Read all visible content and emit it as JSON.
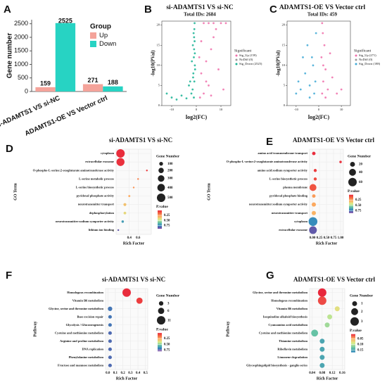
{
  "chart_data": [
    {
      "type": "bar",
      "panel_label": "A",
      "ylabel": "Gene number",
      "legend_title": "Group",
      "categories": [
        "si-ADAMTS1 VS si-NC",
        "ADAMTS1-OE VS Vector ctrl"
      ],
      "series": [
        {
          "name": "Up",
          "color": "#f4a39a",
          "values": [
            159,
            271
          ]
        },
        {
          "name": "Down",
          "color": "#27d3c3",
          "values": [
            2525,
            188
          ]
        }
      ],
      "ylim": [
        0,
        2650
      ],
      "yticks": [
        0,
        500,
        1000,
        1500,
        2000,
        2500
      ]
    },
    {
      "type": "scatter",
      "panel_label": "B",
      "title": "si-ADAMTS1 VS si-NC",
      "subtitle": "Total IDs: 2684",
      "xlabel": "log2(FC)",
      "ylabel": "-log10(PVal)",
      "legend_title": "Significant",
      "xlim": [
        -14,
        14
      ],
      "ylim": [
        0,
        21
      ],
      "xticks": [
        -10,
        0,
        10
      ],
      "yticks": [
        0,
        5,
        10,
        15,
        20
      ],
      "series": [
        {
          "name": "Sig_Up (159)",
          "color": "#f06eaa",
          "x": [
            1.5,
            3,
            5,
            2,
            4,
            6,
            8,
            10,
            12,
            3,
            5,
            7,
            2,
            9,
            11,
            1.2,
            4,
            6,
            7
          ],
          "y": [
            2,
            3,
            5,
            8,
            11,
            14,
            19,
            20.5,
            20.5,
            20.5,
            20.5,
            20.5,
            16,
            9,
            4,
            12,
            6,
            2.5,
            17
          ]
        },
        {
          "name": "NoDiff (0)",
          "color": "#999999",
          "x": [],
          "y": []
        },
        {
          "name": "Sig_Down (2525)",
          "color": "#19b394",
          "x": [
            -1,
            -1.5,
            -0.8,
            -1.2,
            -0.6,
            -1,
            -0.9,
            -0.7,
            -1.1,
            -0.8,
            -2,
            -3,
            -1.3,
            -0.5,
            -1.8,
            -0.6,
            -1.4,
            -0.9,
            -10,
            -12,
            -8,
            -6,
            -4,
            -2.5,
            -0.7
          ],
          "y": [
            2,
            4,
            6,
            8,
            10,
            12,
            14,
            16,
            18,
            19,
            3,
            5,
            7,
            9,
            11,
            13,
            15,
            17,
            2,
            3,
            1.5,
            2.5,
            1.8,
            6,
            20.5
          ]
        }
      ]
    },
    {
      "type": "scatter",
      "panel_label": "C",
      "title": "ADAMTS1-OE VS Vector ctrl",
      "subtitle": "Total IDs: 459",
      "xlabel": "log2(FC)",
      "ylabel": "-log10(PVal)",
      "legend_title": "Significant",
      "xlim": [
        -14,
        14
      ],
      "ylim": [
        0,
        21
      ],
      "xticks": [
        -10,
        0,
        10
      ],
      "yticks": [
        0,
        5,
        10,
        15,
        20
      ],
      "series": [
        {
          "name": "Sig_Up (271)",
          "color": "#f06eaa",
          "x": [
            1.5,
            2,
            3,
            1.2,
            2.5,
            1.8,
            1.5,
            4,
            6,
            8,
            10,
            3,
            2,
            5
          ],
          "y": [
            3,
            6,
            9,
            12,
            15,
            18,
            20.5,
            4,
            7,
            3,
            4,
            2,
            10,
            13
          ]
        },
        {
          "name": "NoDiff (0)",
          "color": "#999999",
          "x": [],
          "y": []
        },
        {
          "name": "Sig_Down (188)",
          "color": "#3fa9d6",
          "x": [
            -2,
            -4,
            -6,
            -3,
            -5,
            -8,
            -10,
            -1.5,
            -2.5,
            -7,
            -1.2,
            -4,
            -9
          ],
          "y": [
            3,
            5,
            8,
            12,
            15,
            4,
            3,
            6,
            10,
            12,
            18,
            2,
            6
          ]
        }
      ]
    },
    {
      "type": "bubble",
      "panel_label": "D",
      "title": "si-ADAMTS1 VS si-NC",
      "xlabel": "Rich Factor",
      "ylabel": "GO Term",
      "categories": [
        "cytoplasm",
        "extracellular exosome",
        "O-phospho-L-serine:2-oxoglutarate aminotransferase activity",
        "L-serine metabolic process",
        "L-serine biosynthetic process",
        "pyridoxal phosphate activity",
        "neurotransmitter transport",
        "dephosphorylation",
        "neurotransmitter:sodium symporter activity",
        "lithium ion binding"
      ],
      "values": [
        0.2,
        0.2,
        0.8,
        0.6,
        0.5,
        0.4,
        0.3,
        0.3,
        0.25,
        0.15
      ],
      "sizes": [
        500,
        450,
        20,
        20,
        20,
        30,
        60,
        50,
        40,
        20
      ],
      "pvalues": [
        0.02,
        0.03,
        0.05,
        0.2,
        0.25,
        0.3,
        0.35,
        0.4,
        0.7,
        0.85
      ],
      "xlim": [
        0.1,
        0.9
      ],
      "xticks": [
        0.4,
        0.6
      ],
      "size_legend_title": "Gene Number",
      "size_ticks": [
        100,
        200,
        300,
        400,
        500
      ],
      "color_legend_title": "P.value",
      "clim": [
        0.01,
        0.9
      ],
      "color_ticks": [
        0.25,
        {
          "value": 0.5,
          "label": "0.50"
        },
        0.75
      ],
      "colorscale": [
        "#e8283c",
        "#f46d43",
        "#fdae61",
        "#d9ef8b",
        "#66c2a5",
        "#3288bd",
        "#7b3fa0"
      ]
    },
    {
      "type": "bubble",
      "panel_label": "E",
      "title": "ADAMTS1-OE VS Vector ctrl",
      "xlabel": "Rich Factor",
      "ylabel": "GO Term",
      "categories": [
        "amino acid transmembrane transport",
        "O-phospho-L-serine:2-oxoglutarate aminotransferase activity",
        "amino acid:sodium symporter activity",
        "L-serine biosynthetic process",
        "plasma membrane",
        "pyridoxal phosphate binding",
        "neurotransmitter:sodium symporter activity",
        "neurotransmitter transport",
        "cytoplasm",
        "extracellular exosome"
      ],
      "values": [
        0.05,
        1.0,
        0.1,
        0.1,
        0.02,
        0.05,
        0.05,
        0.05,
        0.02,
        0.02
      ],
      "sizes": [
        10,
        5,
        8,
        8,
        40,
        10,
        15,
        15,
        65,
        50
      ],
      "pvalues": [
        0.02,
        0.03,
        0.05,
        0.08,
        0.1,
        0.25,
        0.28,
        0.3,
        0.7,
        0.8
      ],
      "xlim": [
        -0.1,
        1.1
      ],
      "xticks": [
        {
          "value": 0,
          "label": "0.00"
        },
        0.25,
        {
          "value": 0.5,
          "label": "0.50"
        },
        0.75,
        {
          "value": 1,
          "label": "1.00"
        }
      ],
      "size_legend_title": "Gene Number",
      "size_ticks": [
        20,
        40,
        60
      ],
      "color_legend_title": "P.value",
      "clim": [
        0.01,
        0.85
      ],
      "color_ticks": [
        0.25,
        {
          "value": 0.5,
          "label": "0.50"
        },
        0.75
      ],
      "colorscale": [
        "#e8283c",
        "#f46d43",
        "#fdae61",
        "#d9ef8b",
        "#66c2a5",
        "#3288bd",
        "#7b3fa0"
      ]
    },
    {
      "type": "bubble",
      "panel_label": "F",
      "title": "si-ADAMTS1 VS si-NC",
      "xlabel": "Rich Factor",
      "ylabel": "Pathway",
      "categories": [
        "Homologous recombination",
        "Vitamin B6 metabolism",
        "Glycine, serine and threonine metabolism",
        "Base excision repair",
        "Glycolysis / Gluconeogenesis",
        "Cysteine and methionine metabolism",
        "Arginine and proline metabolism",
        "DNA replication",
        "Phenylalanine metabolism",
        "Fructose and mannose metabolism"
      ],
      "values": [
        0.25,
        0.42,
        0.03,
        0.03,
        0.03,
        0.03,
        0.03,
        0.03,
        0.03,
        0.03
      ],
      "sizes": [
        11,
        6,
        3,
        2,
        2,
        2,
        2,
        2,
        2,
        2
      ],
      "pvalues": [
        0.02,
        0.05,
        0.7,
        0.7,
        0.7,
        0.72,
        0.72,
        0.72,
        0.72,
        0.72
      ],
      "xlim": [
        -0.03,
        0.53
      ],
      "xticks": [
        {
          "value": 0,
          "label": "0.0"
        },
        0.1,
        0.2,
        0.3,
        0.4,
        0.5
      ],
      "size_legend_title": "Gene Number",
      "size_ticks": [
        3,
        6,
        11
      ],
      "color_legend_title": "P.value",
      "clim": [
        0.01,
        0.8
      ],
      "color_ticks": [
        0.25,
        {
          "value": 0.5,
          "label": "0.50"
        },
        0.75
      ],
      "colorscale": [
        "#e8283c",
        "#f46d43",
        "#fdae61",
        "#d9ef8b",
        "#66c2a5",
        "#3288bd",
        "#7b3fa0"
      ]
    },
    {
      "type": "bubble",
      "panel_label": "G",
      "title": "ADAMTS1-OE VS Vector ctrl",
      "xlabel": "Rich Factor",
      "ylabel": "Pathway",
      "categories": [
        "Glycine, serine and threonine metabolism",
        "Homologous recombination",
        "Vitamin B6 metabolism",
        "Isoquinoline alkaloid biosynthesis",
        "Cyanoamino acid metabolism",
        "Cysteine and methionine metabolism",
        "Thiamine metabolism",
        "Riboflavin metabolism",
        "Limonene degradation",
        "Glycosphingolipid biosynthesis - ganglio series"
      ],
      "values": [
        0.08,
        0.08,
        0.14,
        0.11,
        0.1,
        0.05,
        0.08,
        0.08,
        0.08,
        0.08
      ],
      "sizes": [
        3,
        3,
        1,
        1,
        1,
        2,
        1,
        1,
        1,
        1
      ],
      "pvalues": [
        0.01,
        0.02,
        0.08,
        0.1,
        0.11,
        0.13,
        0.15,
        0.15,
        0.15,
        0.15
      ],
      "xlim": [
        0.03,
        0.17
      ],
      "xticks": [
        0.04,
        0.08,
        0.12,
        0.16
      ],
      "size_legend_title": "Gene Number",
      "size_ticks": [
        1,
        2,
        3
      ],
      "color_legend_title": "P.value",
      "clim": [
        0.01,
        0.17
      ],
      "color_ticks": [
        0.05,
        {
          "value": 0.1,
          "label": "0.10"
        },
        0.15
      ],
      "colorscale": [
        "#e8283c",
        "#fdae61",
        "#d9ef8b",
        "#66c2a5",
        "#3288bd"
      ]
    }
  ]
}
